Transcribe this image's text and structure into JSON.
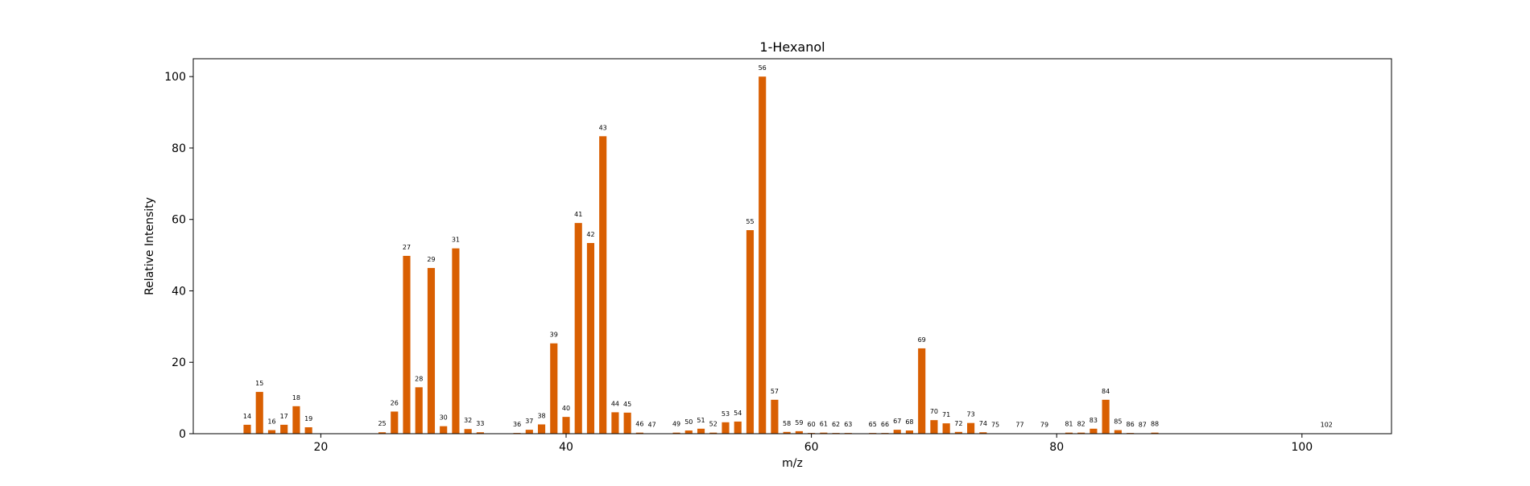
{
  "chart_data": {
    "type": "bar",
    "title": "1-Hexanol",
    "xlabel": "m/z",
    "ylabel": "Relative Intensity",
    "xlim": [
      9.6,
      107.3
    ],
    "ylim": [
      0,
      105
    ],
    "xticks": [
      20,
      40,
      60,
      80,
      100
    ],
    "yticks": [
      0,
      20,
      40,
      60,
      80,
      100
    ],
    "grid": false,
    "color": "#d95f02",
    "x": [
      14,
      15,
      16,
      17,
      18,
      19,
      25,
      26,
      27,
      28,
      29,
      30,
      31,
      32,
      33,
      36,
      37,
      38,
      39,
      40,
      41,
      42,
      43,
      44,
      45,
      46,
      47,
      49,
      50,
      51,
      52,
      53,
      54,
      55,
      56,
      57,
      58,
      59,
      60,
      61,
      62,
      63,
      65,
      66,
      67,
      68,
      69,
      70,
      71,
      72,
      73,
      74,
      75,
      77,
      79,
      81,
      82,
      83,
      84,
      85,
      86,
      87,
      88,
      102
    ],
    "values": [
      2.5,
      11.7,
      1.0,
      2.5,
      7.7,
      1.8,
      0.4,
      6.2,
      49.8,
      13.0,
      46.4,
      2.1,
      51.9,
      1.3,
      0.4,
      0.2,
      1.1,
      2.6,
      25.3,
      4.7,
      59.0,
      53.4,
      83.3,
      6.0,
      5.9,
      0.3,
      0.1,
      0.3,
      0.9,
      1.4,
      0.3,
      3.2,
      3.4,
      57.0,
      100.0,
      9.5,
      0.5,
      0.7,
      0.2,
      0.3,
      0.2,
      0.2,
      0.2,
      0.2,
      1.1,
      0.9,
      23.9,
      3.8,
      2.9,
      0.5,
      3.0,
      0.4,
      0.1,
      0.1,
      0.1,
      0.3,
      0.3,
      1.4,
      9.5,
      1.0,
      0.2,
      0.1,
      0.3,
      0.1
    ]
  }
}
